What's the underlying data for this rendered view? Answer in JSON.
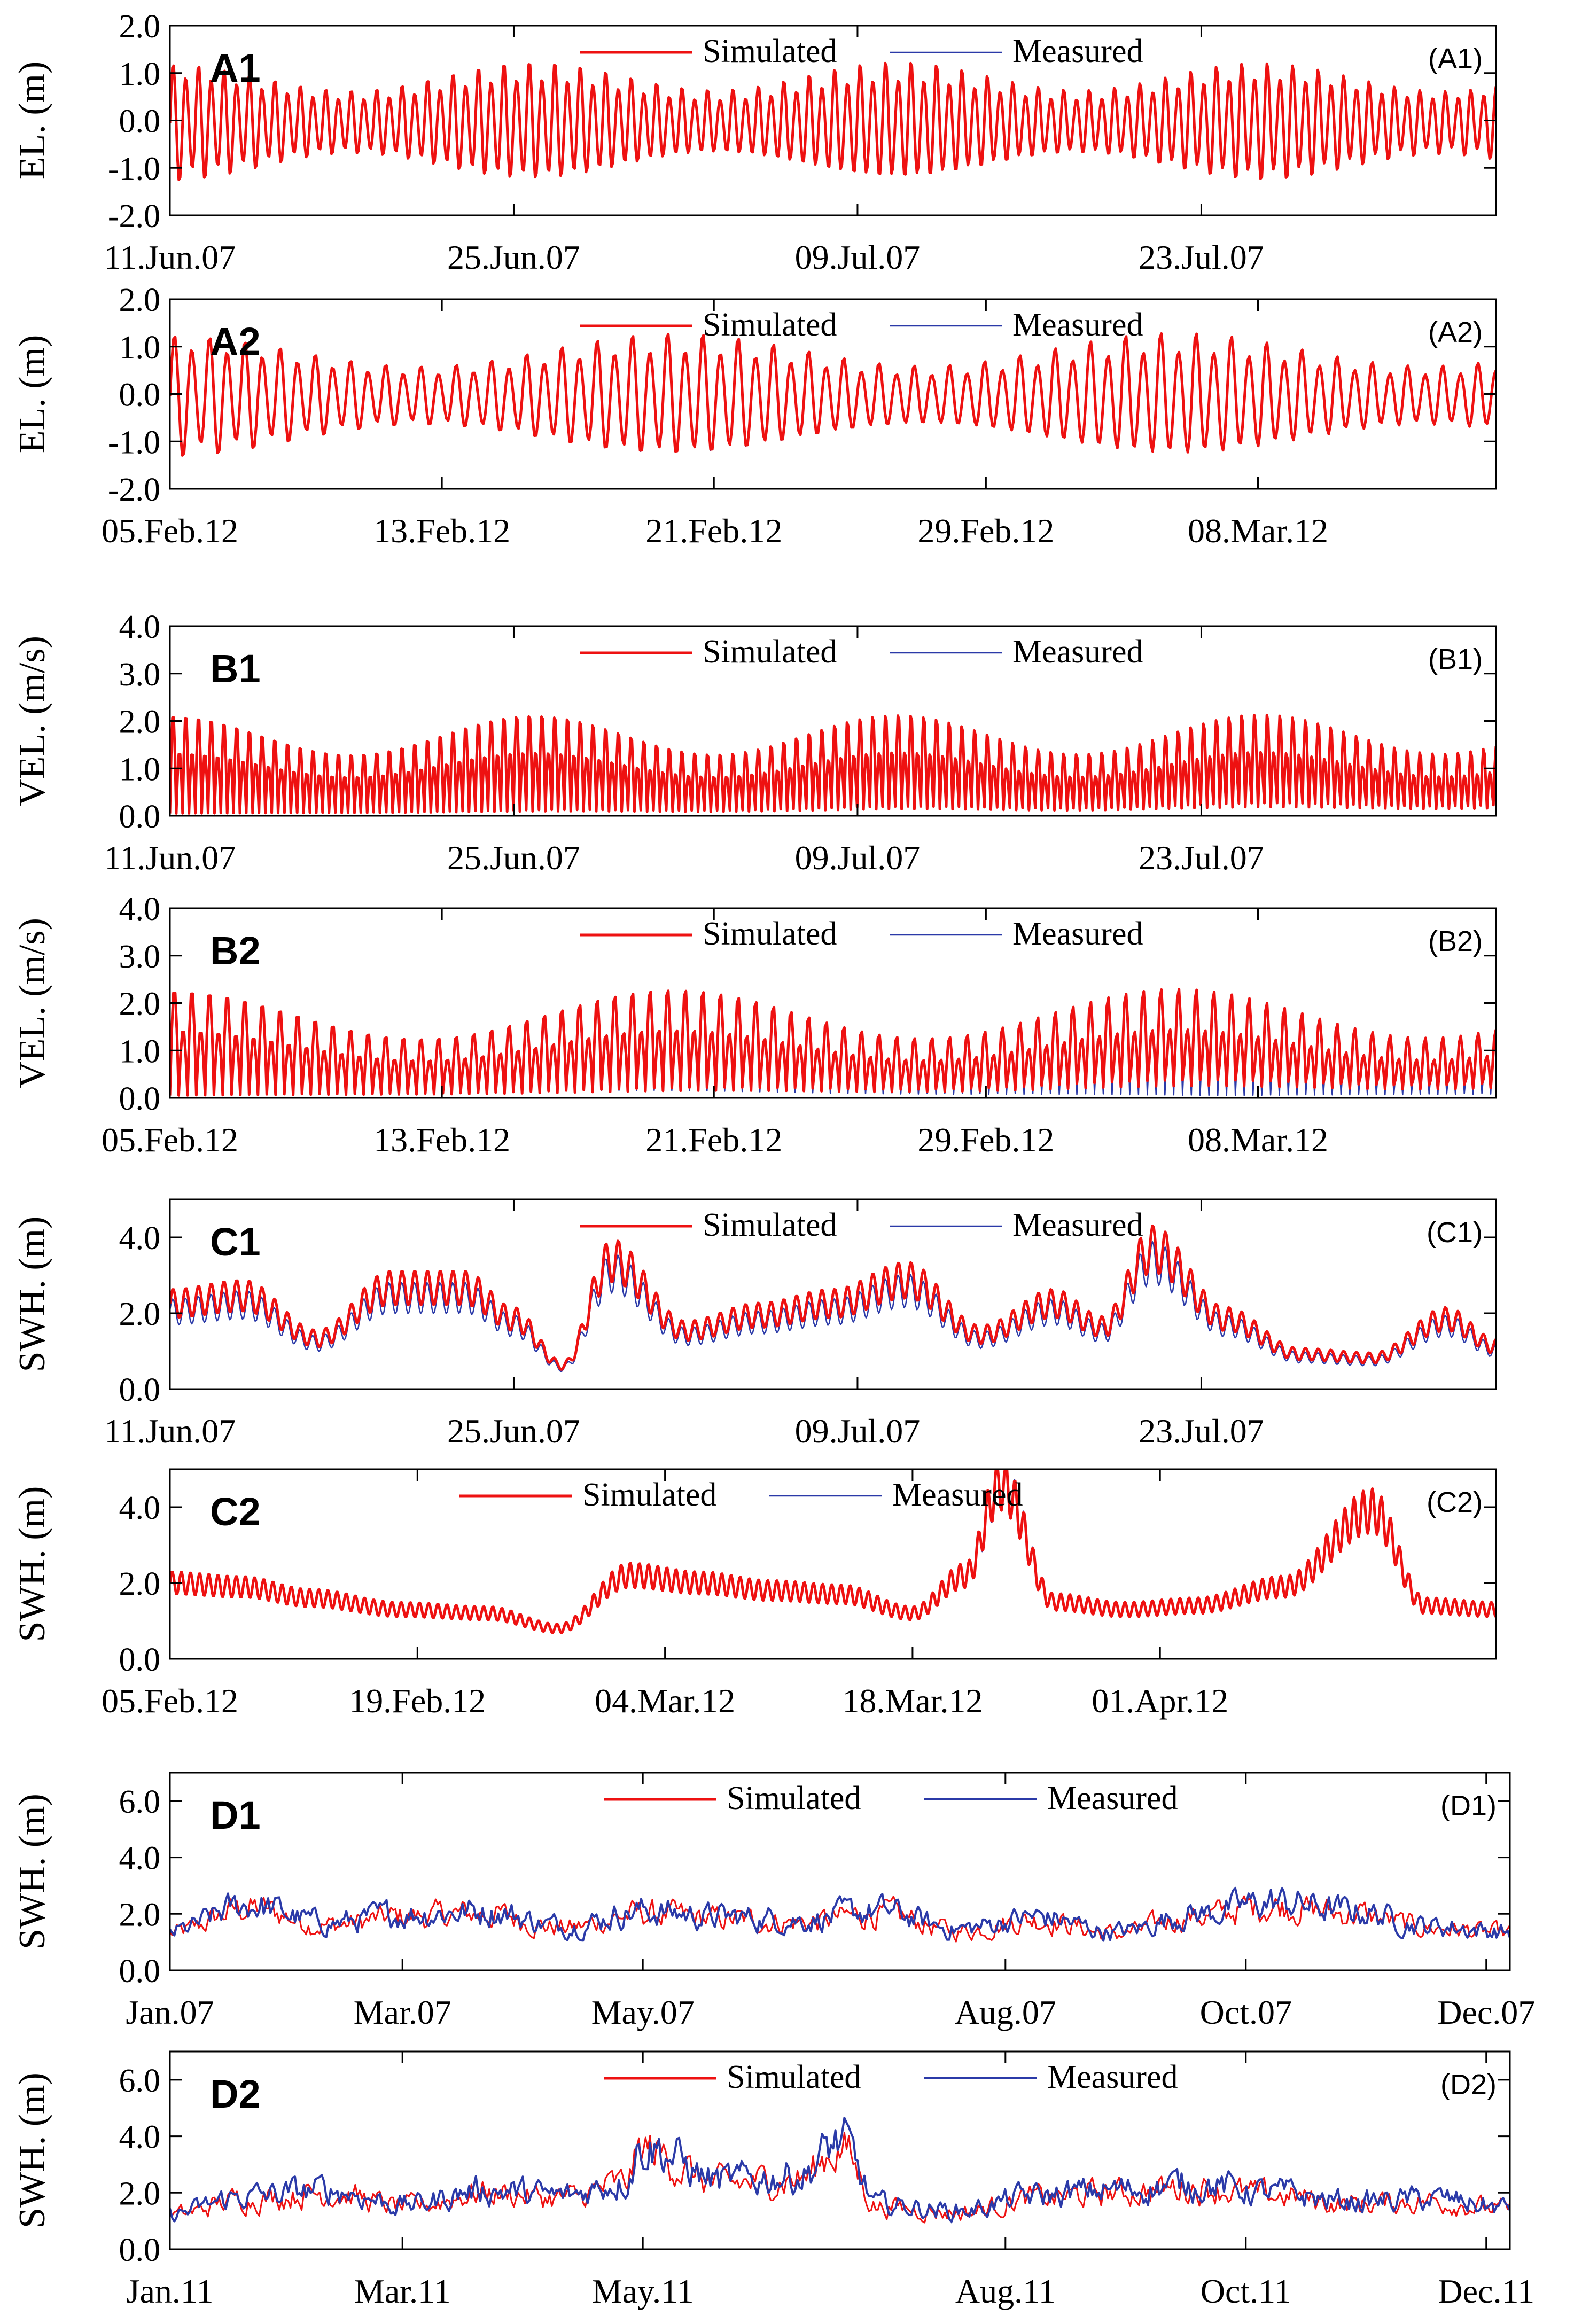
{
  "figure": {
    "colors": {
      "simulated": "#ee1111",
      "measured": "#2b3aa8",
      "axis": "#000000",
      "background": "#ffffff"
    }
  },
  "chart_data": [
    {
      "id": "A1",
      "type": "line",
      "letter": "A1",
      "tag": "(A1)",
      "ylabel": "EL. (m)",
      "ylim": [
        -2.0,
        2.0
      ],
      "yticks": [
        -2.0,
        -1.0,
        0.0,
        1.0,
        2.0
      ],
      "ytick_labels": [
        "-2.0",
        "-1.0",
        "0.0",
        "1.0",
        "2.0"
      ],
      "xlim_days": [
        0,
        54
      ],
      "xticks_days": [
        0,
        14,
        28,
        42
      ],
      "xtick_labels": [
        "11.Jun.07",
        "25.Jun.07",
        "09.Jul.07",
        "23.Jul.07"
      ],
      "legend_position": "top-center",
      "legend": [
        "Simulated",
        "Measured"
      ],
      "signal": {
        "kind": "tide",
        "cycles_per_day": 1.93,
        "amplitude_mean": 0.85,
        "spring_neap_days": 14.8,
        "spring_neap_depth": 0.3,
        "offset": -0.05,
        "measured_scale": 0.95
      },
      "series": [
        {
          "name": "Simulated",
          "color": "#ee1111"
        },
        {
          "name": "Measured",
          "color": "#2b3aa8"
        }
      ]
    },
    {
      "id": "A2",
      "type": "line",
      "letter": "A2",
      "tag": "(A2)",
      "ylabel": "EL. (m)",
      "ylim": [
        -2.0,
        2.0
      ],
      "yticks": [
        -2.0,
        -1.0,
        0.0,
        1.0,
        2.0
      ],
      "ytick_labels": [
        "-2.0",
        "-1.0",
        "0.0",
        "1.0",
        "2.0"
      ],
      "xlim_days": [
        0,
        39
      ],
      "xticks_days": [
        0,
        8,
        16,
        24,
        32
      ],
      "xtick_labels": [
        "05.Feb.12",
        "13.Feb.12",
        "21.Feb.12",
        "29.Feb.12",
        "08.Mar.12"
      ],
      "legend_position": "top-center",
      "legend": [
        "Simulated",
        "Measured"
      ],
      "signal": {
        "kind": "tide",
        "cycles_per_day": 1.93,
        "amplitude_mean": 0.85,
        "spring_neap_days": 14.8,
        "spring_neap_depth": 0.35,
        "offset": -0.05,
        "measured_scale": 0.97
      },
      "series": [
        {
          "name": "Simulated",
          "color": "#ee1111"
        },
        {
          "name": "Measured",
          "color": "#2b3aa8"
        }
      ]
    },
    {
      "id": "B1",
      "type": "line",
      "letter": "B1",
      "tag": "(B1)",
      "ylabel": "VEL. (m/s)",
      "ylim": [
        0.0,
        4.0
      ],
      "yticks": [
        0.0,
        1.0,
        2.0,
        3.0,
        4.0
      ],
      "ytick_labels": [
        "0.0",
        "1.0",
        "2.0",
        "3.0",
        "4.0"
      ],
      "xlim_days": [
        0,
        54
      ],
      "xticks_days": [
        0,
        14,
        28,
        42
      ],
      "xtick_labels": [
        "11.Jun.07",
        "25.Jun.07",
        "09.Jul.07",
        "23.Jul.07"
      ],
      "legend_position": "top-center",
      "legend": [
        "Simulated",
        "Measured"
      ],
      "signal": {
        "kind": "velocity",
        "cycles_per_day": 1.93,
        "amplitude_mean": 1.7,
        "spring_neap_days": 14.8,
        "spring_neap_depth": 0.25,
        "offset": 0.0,
        "measured_scale": 0.93
      },
      "series": [
        {
          "name": "Simulated",
          "color": "#ee1111"
        },
        {
          "name": "Measured",
          "color": "#2b3aa8"
        }
      ]
    },
    {
      "id": "B2",
      "type": "line",
      "letter": "B2",
      "tag": "(B2)",
      "ylabel": "VEL. (m/s)",
      "ylim": [
        0.0,
        4.0
      ],
      "yticks": [
        0.0,
        1.0,
        2.0,
        3.0,
        4.0
      ],
      "ytick_labels": [
        "0.0",
        "1.0",
        "2.0",
        "3.0",
        "4.0"
      ],
      "xlim_days": [
        0,
        39
      ],
      "xticks_days": [
        0,
        8,
        16,
        24,
        32
      ],
      "xtick_labels": [
        "05.Feb.12",
        "13.Feb.12",
        "21.Feb.12",
        "29.Feb.12",
        "08.Mar.12"
      ],
      "legend_position": "top-center",
      "legend": [
        "Simulated",
        "Measured"
      ],
      "signal": {
        "kind": "velocity",
        "cycles_per_day": 1.93,
        "amplitude_mean": 1.75,
        "spring_neap_days": 14.8,
        "spring_neap_depth": 0.3,
        "offset": 0.0,
        "measured_scale": 0.95
      },
      "series": [
        {
          "name": "Simulated",
          "color": "#ee1111"
        },
        {
          "name": "Measured",
          "color": "#2b3aa8"
        }
      ]
    },
    {
      "id": "C1",
      "type": "line",
      "letter": "C1",
      "tag": "(C1)",
      "ylabel": "SWH. (m)",
      "ylim": [
        0.0,
        5.0
      ],
      "yticks": [
        0.0,
        2.0,
        4.0
      ],
      "ytick_labels": [
        "0.0",
        "2.0",
        "4.0"
      ],
      "xlim_days": [
        0,
        54
      ],
      "xticks_days": [
        0,
        14,
        28,
        42
      ],
      "xtick_labels": [
        "11.Jun.07",
        "25.Jun.07",
        "09.Jul.07",
        "23.Jul.07"
      ],
      "legend_position": "top-center",
      "legend": [
        "Simulated",
        "Measured"
      ],
      "signal": {
        "kind": "waves",
        "cycles_per_day": 1.93,
        "ripple": 0.35,
        "measured_scale": 0.9
      },
      "envelope": {
        "days": [
          0,
          3,
          6,
          9,
          12,
          14,
          16,
          18,
          21,
          24,
          27,
          30,
          33,
          36,
          38,
          40,
          43,
          46,
          49,
          52,
          54
        ],
        "values": [
          2.2,
          2.4,
          1.3,
          2.6,
          2.6,
          1.8,
          0.6,
          3.3,
          1.5,
          1.9,
          2.2,
          2.8,
          1.4,
          2.2,
          1.6,
          3.6,
          1.8,
          0.9,
          0.8,
          1.8,
          1.1
        ]
      },
      "series": [
        {
          "name": "Simulated",
          "color": "#ee1111"
        },
        {
          "name": "Measured",
          "color": "#2b3aa8"
        }
      ]
    },
    {
      "id": "C2",
      "type": "line",
      "letter": "C2",
      "tag": "(C2)",
      "ylabel": "SWH. (m)",
      "ylim": [
        0.0,
        5.0
      ],
      "yticks": [
        0.0,
        2.0,
        4.0
      ],
      "ytick_labels": [
        "0.0",
        "2.0",
        "4.0"
      ],
      "xlim_days": [
        0,
        75
      ],
      "xticks_days": [
        0,
        14,
        28,
        42,
        56
      ],
      "xtick_labels": [
        "05.Feb.12",
        "19.Feb.12",
        "04.Mar.12",
        "18.Mar.12",
        "01.Apr.12"
      ],
      "legend_position": "top-center",
      "legend": [
        "Simulated",
        "Measured"
      ],
      "signal": {
        "kind": "waves",
        "cycles_per_day": 1.93,
        "ripple": 0.3,
        "measured_scale": 1.0
      },
      "envelope": {
        "days": [
          0,
          4,
          8,
          13,
          18,
          22,
          26,
          30,
          34,
          38,
          42,
          45,
          47,
          50,
          54,
          58,
          63,
          68,
          71,
          75
        ],
        "values": [
          2.0,
          1.9,
          1.6,
          1.3,
          1.2,
          0.8,
          2.2,
          2.0,
          1.8,
          1.7,
          1.2,
          2.2,
          4.6,
          1.5,
          1.3,
          1.4,
          1.9,
          3.9,
          1.4,
          1.3
        ]
      },
      "series": [
        {
          "name": "Simulated",
          "color": "#ee1111"
        },
        {
          "name": "Measured",
          "color": "#2b3aa8"
        }
      ]
    },
    {
      "id": "D1",
      "type": "line",
      "letter": "D1",
      "tag": "(D1)",
      "ylabel": "SWH. (m)",
      "ylim": [
        0.0,
        7.0
      ],
      "yticks": [
        0.0,
        2.0,
        4.0,
        6.0
      ],
      "ytick_labels": [
        "0.0",
        "2.0",
        "4.0",
        "6.0"
      ],
      "xlim_days": [
        0,
        340
      ],
      "xticks_days": [
        0,
        59,
        120,
        212,
        273,
        334
      ],
      "xtick_labels": [
        "Jan.07",
        "Mar.07",
        "May.07",
        "Aug.07",
        "Oct.07",
        "Dec.07"
      ],
      "legend_position": "top-center",
      "legend": [
        "Simulated",
        "Measured"
      ],
      "signal": {
        "kind": "noisy",
        "cycles_per_day": 0.5,
        "ripple": 0.6,
        "measured_scale": 1.05
      },
      "envelope": {
        "days": [
          0,
          20,
          40,
          60,
          80,
          100,
          120,
          140,
          160,
          180,
          200,
          220,
          240,
          260,
          280,
          300,
          320,
          340
        ],
        "values": [
          1.3,
          2.2,
          1.6,
          1.9,
          2.0,
          1.5,
          2.0,
          1.8,
          1.7,
          2.0,
          1.4,
          1.8,
          1.3,
          1.9,
          2.3,
          2.0,
          1.5,
          1.3
        ]
      },
      "series": [
        {
          "name": "Simulated",
          "color": "#ee1111"
        },
        {
          "name": "Measured",
          "color": "#2b3aa8"
        }
      ]
    },
    {
      "id": "D2",
      "type": "line",
      "letter": "D2",
      "tag": "(D2)",
      "ylabel": "SWH. (m)",
      "ylim": [
        0.0,
        7.0
      ],
      "yticks": [
        0.0,
        2.0,
        4.0,
        6.0
      ],
      "ytick_labels": [
        "0.0",
        "2.0",
        "4.0",
        "6.0"
      ],
      "xlim_days": [
        0,
        340
      ],
      "xticks_days": [
        0,
        59,
        120,
        212,
        273,
        334
      ],
      "xtick_labels": [
        "Jan.11",
        "Mar.11",
        "May.11",
        "Aug.11",
        "Oct.11",
        "Dec.11"
      ],
      "legend_position": "top-center",
      "legend": [
        "Simulated",
        "Measured"
      ],
      "signal": {
        "kind": "noisy",
        "cycles_per_day": 0.5,
        "ripple": 0.6,
        "measured_scale": 1.05
      },
      "envelope": {
        "days": [
          0,
          20,
          40,
          60,
          80,
          100,
          115,
          120,
          140,
          160,
          170,
          180,
          200,
          220,
          240,
          260,
          280,
          300,
          320,
          340
        ],
        "values": [
          1.2,
          1.8,
          2.0,
          1.5,
          2.0,
          1.8,
          2.3,
          3.5,
          2.3,
          2.5,
          3.6,
          1.5,
          1.3,
          1.8,
          2.0,
          2.2,
          1.9,
          1.6,
          1.7,
          1.4
        ]
      },
      "series": [
        {
          "name": "Simulated",
          "color": "#ee1111"
        },
        {
          "name": "Measured",
          "color": "#2b3aa8"
        }
      ]
    }
  ]
}
